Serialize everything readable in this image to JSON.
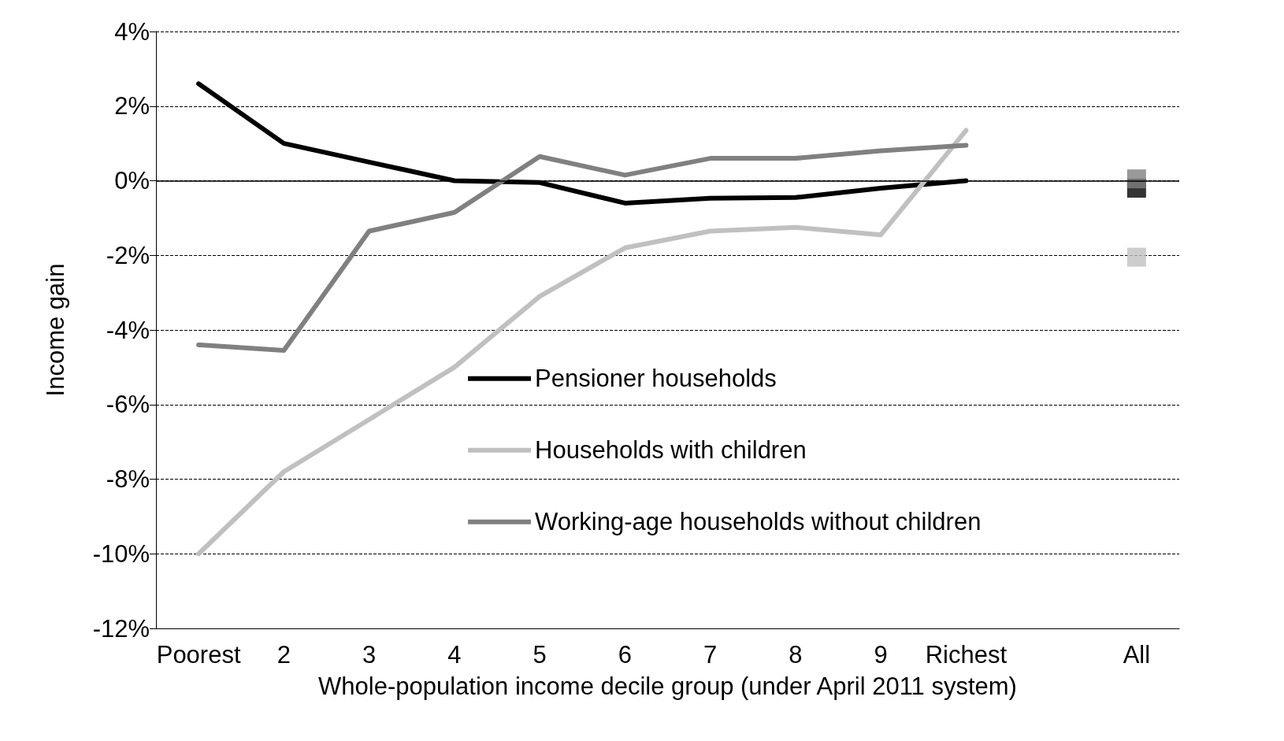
{
  "chart_data": {
    "type": "line",
    "xlabel": "Whole-population income decile group (under April 2011 system)",
    "ylabel": "Income gain",
    "categories": [
      "Poorest",
      "2",
      "3",
      "4",
      "5",
      "6",
      "7",
      "8",
      "9",
      "Richest",
      null,
      "All"
    ],
    "series": [
      {
        "name": "Pensioner households",
        "color": "#000000",
        "marker": "none",
        "values": [
          2.6,
          1.0,
          0.5,
          0.0,
          -0.05,
          -0.6,
          -0.47,
          -0.45,
          -0.2,
          0.0,
          null,
          null
        ]
      },
      {
        "name": "Households with children",
        "color": "#c0c0c0",
        "marker": "none",
        "values": [
          -10.0,
          -7.8,
          -6.4,
          -5.0,
          -3.1,
          -1.8,
          -1.35,
          -1.25,
          -1.45,
          1.35,
          null,
          null
        ]
      },
      {
        "name": "Working-age households without children",
        "color": "#808080",
        "marker": "none",
        "values": [
          -4.4,
          -4.55,
          -1.35,
          -0.85,
          0.65,
          0.15,
          0.6,
          0.6,
          0.8,
          0.95,
          null,
          null
        ]
      },
      {
        "type": "scatter",
        "color": "#000000",
        "x": [
          "All"
        ],
        "values": [
          -0.2
        ]
      },
      {
        "type": "scatter",
        "color": "#c0c0c0",
        "x": [
          "All"
        ],
        "values": [
          -2.05
        ]
      },
      {
        "type": "scatter",
        "color": "#808080",
        "x": [
          "All"
        ],
        "values": [
          0.05
        ]
      }
    ],
    "ylim": [
      -12,
      4
    ],
    "yticks": [
      {
        "value": -12,
        "label": "-12%"
      },
      {
        "value": -10,
        "label": "-10%"
      },
      {
        "value": -8,
        "label": "-8%"
      },
      {
        "value": -6,
        "label": "-6%"
      },
      {
        "value": -4,
        "label": "-4%"
      },
      {
        "value": -2,
        "label": "-2%"
      },
      {
        "value": 0,
        "label": "0%"
      },
      {
        "value": 2,
        "label": "2%"
      },
      {
        "value": 4,
        "label": "4%"
      }
    ],
    "grid": "y",
    "legend": "bottom",
    "marker": "square",
    "line_style": "solid",
    "ref_lines": [
      {
        "axis": "y",
        "value": 0,
        "color": "#000000",
        "line_style": "solid"
      }
    ]
  }
}
